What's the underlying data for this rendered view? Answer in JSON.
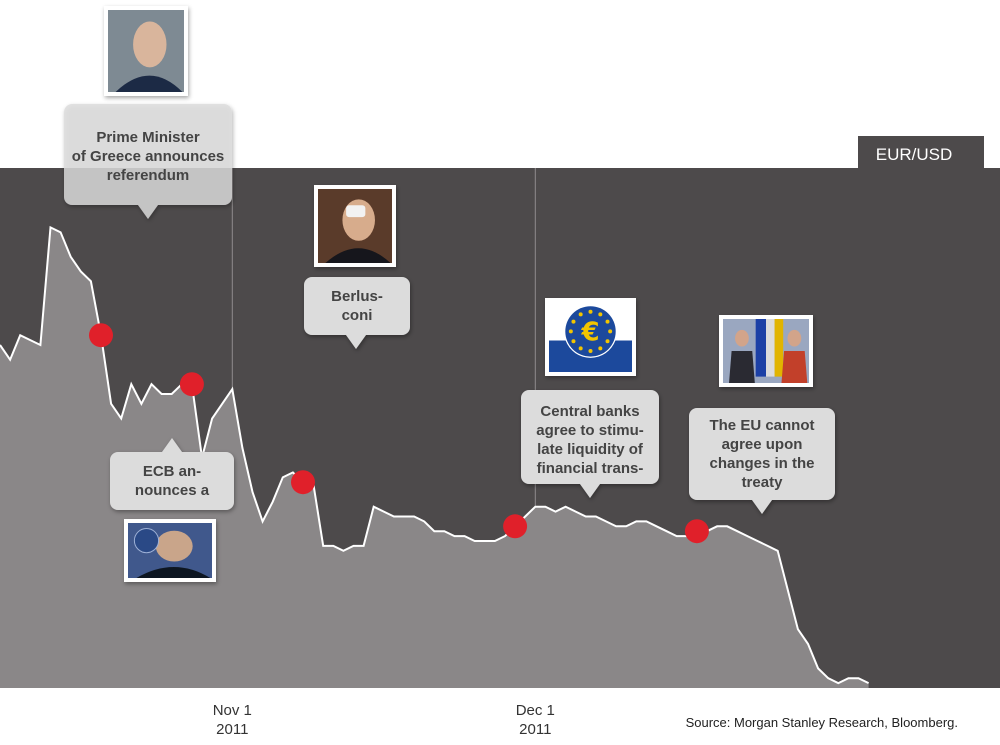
{
  "chart_data": {
    "type": "area",
    "pair_label": "EUR/USD",
    "source": "Source: Morgan Stanley Research, Bloomberg.",
    "x_ticks": [
      {
        "line1": "Nov 1",
        "line2": "2011",
        "x": 23
      },
      {
        "line1": "Dec 1",
        "line2": "2011",
        "x": 53
      }
    ],
    "grid": true,
    "ylim": [
      0,
      100
    ],
    "xlim": [
      0,
      87
    ],
    "x": [
      0,
      1,
      2,
      3,
      4,
      5,
      6,
      7,
      8,
      9,
      10,
      11,
      12,
      13,
      14,
      15,
      16,
      17,
      18,
      19,
      20,
      21,
      22,
      23,
      24,
      25,
      26,
      27,
      28,
      29,
      30,
      31,
      32,
      33,
      34,
      35,
      36,
      37,
      38,
      39,
      40,
      41,
      42,
      43,
      44,
      45,
      46,
      47,
      48,
      49,
      50,
      51,
      52,
      53,
      54,
      55,
      56,
      57,
      58,
      59,
      60,
      61,
      62,
      63,
      64,
      65,
      66,
      67,
      68,
      69,
      70,
      71,
      72,
      73,
      74,
      75,
      76,
      77,
      78,
      79,
      80,
      81,
      82,
      83,
      84,
      85,
      86
    ],
    "values": [
      70,
      67,
      72,
      71,
      70,
      94,
      93,
      88,
      85,
      83,
      72,
      58,
      55,
      62,
      58,
      62,
      60,
      60,
      62,
      62,
      47,
      55,
      58,
      61,
      49,
      40,
      34,
      38,
      43,
      44,
      42,
      42,
      29,
      29,
      28,
      29,
      29,
      37,
      36,
      35,
      35,
      35,
      34,
      32,
      32,
      31,
      31,
      30,
      30,
      30,
      31,
      33,
      35,
      37,
      37,
      36,
      37,
      36,
      35,
      35,
      34,
      33,
      33,
      34,
      34,
      33,
      32,
      31,
      31,
      32,
      32,
      33,
      33,
      32,
      31,
      30,
      29,
      28,
      20,
      12,
      9,
      4,
      2,
      1,
      2,
      2,
      1
    ],
    "events": [
      {
        "x": 10,
        "label_lines": [
          "Prime Minister",
          "of Greece announces",
          "referendum"
        ],
        "photo": "photo-greek-prime-minister"
      },
      {
        "x": 19,
        "label_lines": [
          "ECB an-",
          "nounces a"
        ],
        "photo": "photo-ecb-president"
      },
      {
        "x": 30,
        "label_lines": [
          "Berlus-",
          "coni"
        ],
        "photo": "photo-berlusconi"
      },
      {
        "x": 51,
        "label_lines": [
          "Central banks",
          "agree to stimu-",
          "late liquidity of",
          "financial trans-"
        ],
        "photo": "ecb-euro-logo"
      },
      {
        "x": 69,
        "label_lines": [
          "The EU cannot",
          "agree upon",
          "changes in the",
          "treaty"
        ],
        "photo": "photo-eu-leaders"
      }
    ],
    "colors": {
      "background": "#4d4a4b",
      "area": "#8a8788",
      "line": "#ffffff",
      "marker": "#e0202a",
      "callout": "#dcdcdc"
    }
  }
}
